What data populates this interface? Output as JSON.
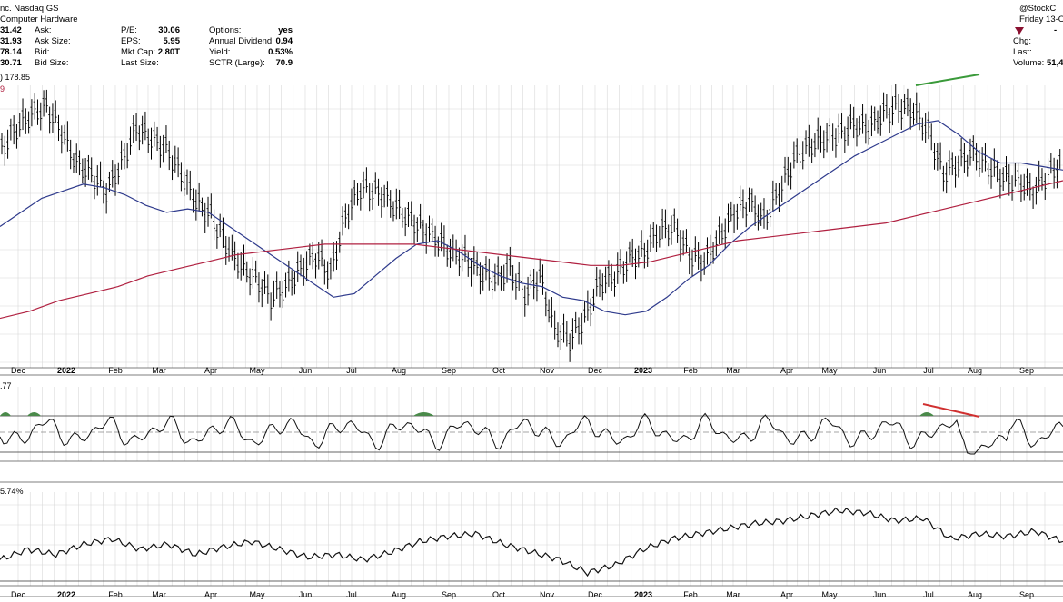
{
  "header": {
    "exchange_line": "nc. Nasdaq GS",
    "industry": "Computer Hardware",
    "credit": "@StockC",
    "date": "Friday 13-O",
    "price_col": [
      "31.42",
      "31.93",
      "78.14",
      "30.71"
    ],
    "quote_labels": [
      "Ask:",
      "Ask Size:",
      "Bid:",
      "Bid Size:"
    ],
    "fund_labels": [
      "P/E:",
      "EPS:",
      "Mkt Cap:",
      "Last Size:"
    ],
    "fund_values": [
      "30.06",
      "5.95",
      "2.80T",
      ""
    ],
    "other_labels": [
      "Options:",
      "Annual Dividend:",
      "Yield:",
      "SCTR (Large):"
    ],
    "other_values": [
      "yes",
      "0.94",
      "0.53%",
      "70.9"
    ],
    "right_labels": [
      "Chg:",
      "Last:",
      "Volume:"
    ],
    "volume_value": "51,4",
    "right_dash": "-",
    "ma_label": ") 178.85",
    "ma_label_2": "9",
    "rsi_label": ".77",
    "pct_label": "5.74%"
  },
  "axis_months": [
    "Dec",
    "2022",
    "Feb",
    "Mar",
    "Apr",
    "May",
    "Jun",
    "Jul",
    "Aug",
    "Sep",
    "Oct",
    "Nov",
    "Dec",
    "2023",
    "Feb",
    "Mar",
    "Apr",
    "May",
    "Jun",
    "Jul",
    "Aug",
    "Sep"
  ],
  "axis_bold": [
    "2022",
    "2023"
  ],
  "chart_data": {
    "type": "line",
    "title": "",
    "x_months": [
      "Dec",
      "2022",
      "Feb",
      "Mar",
      "Apr",
      "May",
      "Jun",
      "Jul",
      "Aug",
      "Sep",
      "Oct",
      "Nov",
      "Dec",
      "2023",
      "Feb",
      "Mar",
      "Apr",
      "May",
      "Jun",
      "Jul",
      "Aug",
      "Sep"
    ],
    "price_series": [
      182,
      188,
      192,
      194,
      187,
      178,
      175,
      170,
      178,
      188,
      185,
      182,
      175,
      167,
      163,
      155,
      149,
      145,
      140,
      143,
      148,
      152,
      147,
      163,
      171,
      170,
      167,
      163,
      160,
      157,
      153,
      151,
      147,
      145,
      148,
      141,
      146,
      131,
      128,
      134,
      144,
      146,
      151,
      153,
      159,
      160,
      152,
      150,
      157,
      164,
      167,
      162,
      170,
      179,
      183,
      185,
      186,
      189,
      188,
      192,
      194,
      193,
      187,
      175,
      178,
      181,
      177,
      174,
      173,
      170,
      175,
      178
    ],
    "sma50": [
      160,
      164,
      168,
      170,
      172,
      171,
      169,
      166,
      164,
      165,
      164,
      160,
      156,
      152,
      148,
      144,
      140,
      141,
      146,
      151,
      155,
      156,
      153,
      149,
      146,
      144,
      143,
      140,
      139,
      136,
      135,
      136,
      140,
      145,
      149,
      155,
      160,
      164,
      168,
      172,
      176,
      180,
      183,
      186,
      189,
      190,
      186,
      181,
      178,
      178,
      177,
      176
    ],
    "sma200": [
      134,
      136,
      139,
      141,
      143,
      146,
      148,
      150,
      152,
      153,
      154,
      155,
      155,
      155,
      155,
      154,
      153,
      152,
      151,
      150,
      149,
      149,
      150,
      152,
      154,
      156,
      157,
      158,
      159,
      160,
      161,
      163,
      165,
      167,
      169,
      171,
      173
    ],
    "rsi_overbought": 70,
    "rsi_oversold": 30,
    "pct_series": [
      40,
      44,
      42,
      46,
      48,
      44,
      46,
      42,
      45,
      47,
      44,
      41,
      42,
      40,
      43,
      47,
      49,
      50,
      46,
      43,
      40,
      35,
      38,
      44,
      48,
      50,
      52,
      54,
      55,
      57,
      59,
      58,
      55,
      56,
      48,
      50,
      49,
      51,
      47
    ]
  },
  "colors": {
    "price": "#000000",
    "sma50": "#2e3a8c",
    "sma200": "#b02040",
    "green_trend": "#3a9a3a",
    "red_trend": "#d03030",
    "grid": "#d8d8d8",
    "rsi_fill": "#4a8a4a"
  }
}
